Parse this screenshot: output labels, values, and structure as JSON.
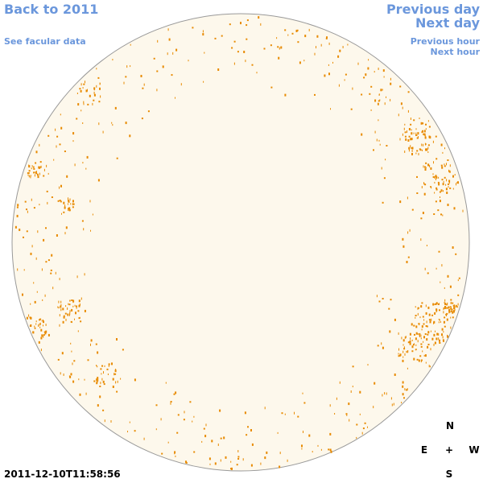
{
  "links": {
    "back": "Back to 2011",
    "facular": "See facular data",
    "previous_day": "Previous day",
    "next_day": "Next day",
    "previous_hour": "Previous hour",
    "next_hour": "Next hour"
  },
  "timestamp": "2011-12-10T11:58:56",
  "compass": {
    "north": "N",
    "east": "E",
    "center": "+",
    "west": "W",
    "south": "S"
  }
}
